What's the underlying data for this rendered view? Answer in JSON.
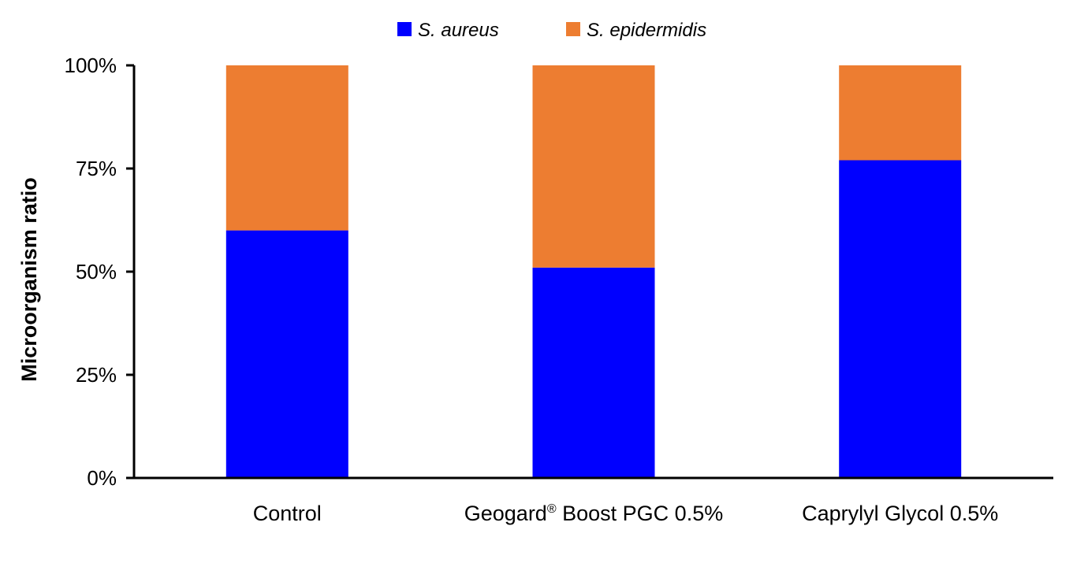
{
  "chart_data": {
    "type": "bar",
    "stacked": true,
    "percent_stacked": true,
    "categories": [
      "Control",
      "Geogard® Boost PGC 0.5%",
      "Caprylyl Glycol 0.5%"
    ],
    "series": [
      {
        "name": "S. aureus",
        "values": [
          60,
          51,
          77
        ],
        "color": "#0000FF"
      },
      {
        "name": "S. epidermidis",
        "values": [
          40,
          49,
          23
        ],
        "color": "#ED7D31"
      }
    ],
    "xlabel": "",
    "ylabel": "Microorganism ratio",
    "ylim": [
      0,
      100
    ],
    "yticks": [
      0,
      25,
      50,
      75,
      100
    ],
    "ytick_labels": [
      "0%",
      "25%",
      "50%",
      "75%",
      "100%"
    ],
    "grid": false,
    "legend_position": "top-center"
  }
}
